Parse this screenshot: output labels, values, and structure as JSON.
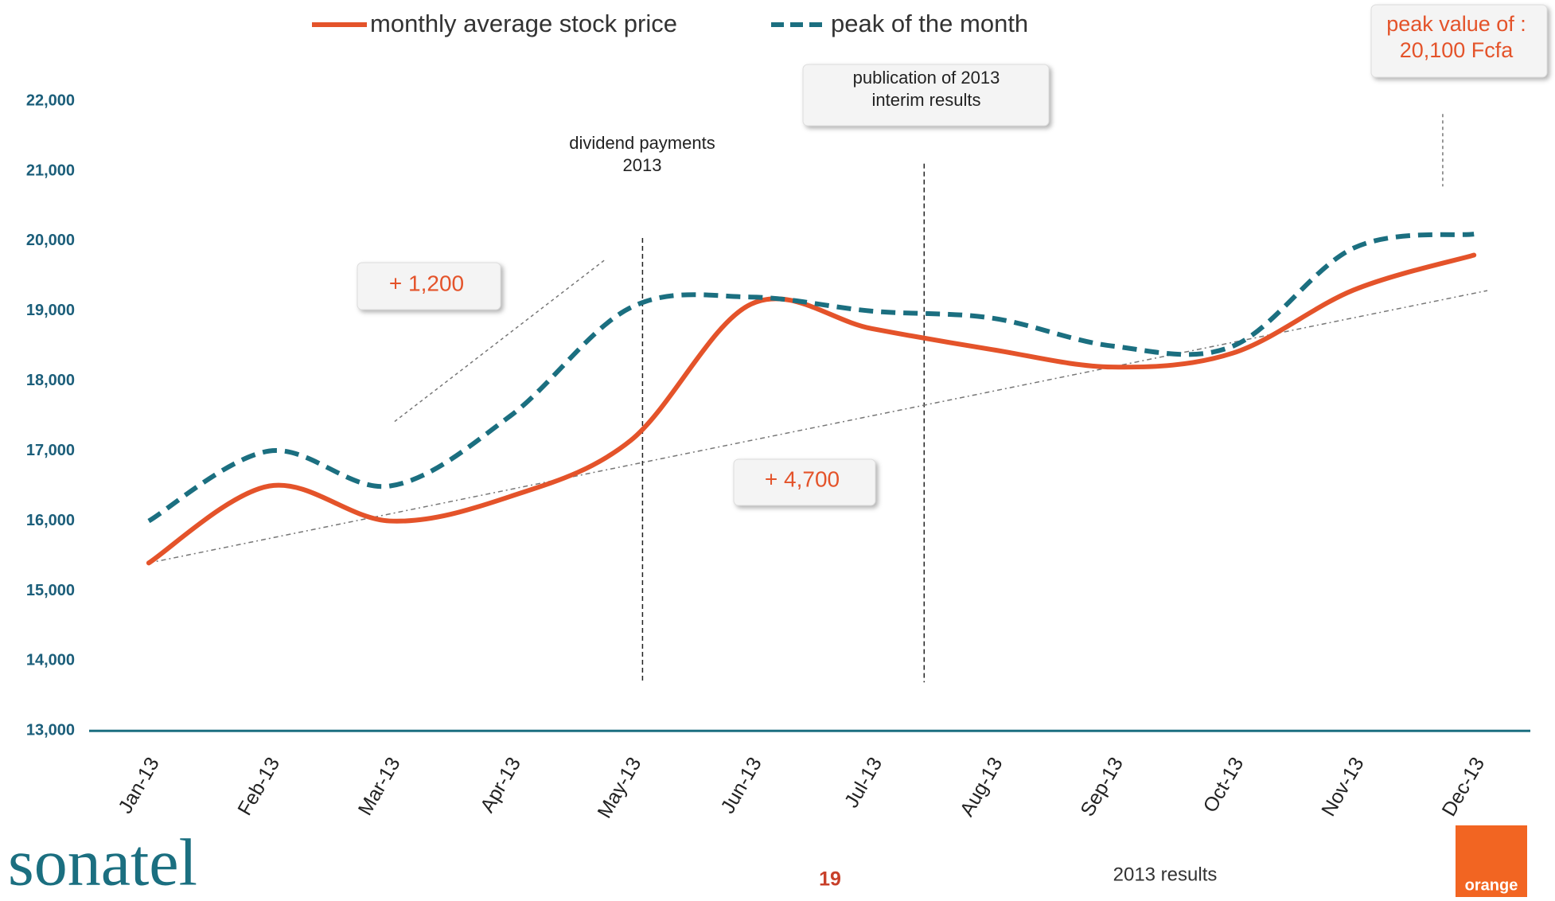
{
  "chart_data": {
    "type": "line",
    "categories": [
      "Jan-13",
      "Feb-13",
      "Mar-13",
      "Apr-13",
      "May-13",
      "Jun-13",
      "Jul-13",
      "Aug-13",
      "Sep-13",
      "Oct-13",
      "Nov-13",
      "Dec-13"
    ],
    "series": [
      {
        "name": "monthly average stock price",
        "color": "#e4532a",
        "dash": false,
        "values": [
          15400,
          16500,
          16000,
          16350,
          17150,
          19100,
          18750,
          18450,
          18200,
          18400,
          19300,
          19800
        ]
      },
      {
        "name": "peak of the month",
        "color": "#1b6f80",
        "dash": true,
        "values": [
          16000,
          17000,
          16500,
          17500,
          19050,
          19200,
          19000,
          18900,
          18500,
          18500,
          19900,
          20100
        ]
      }
    ],
    "ylim": [
      13000,
      22000
    ],
    "yticks": [
      {
        "value": 13000,
        "label": "13,000"
      },
      {
        "value": 14000,
        "label": "14,000"
      },
      {
        "value": 15000,
        "label": "15,000"
      },
      {
        "value": 16000,
        "label": "16,000"
      },
      {
        "value": 17000,
        "label": "17,000"
      },
      {
        "value": 18000,
        "label": "18,000"
      },
      {
        "value": 19000,
        "label": "19,000"
      },
      {
        "value": 20000,
        "label": "20,000"
      },
      {
        "value": 21000,
        "label": "21,000"
      },
      {
        "value": 22000,
        "label": "22,000"
      }
    ],
    "legend": "top",
    "annotations": [
      {
        "text": [
          "dividend payments",
          "2013"
        ]
      },
      {
        "text": [
          "publication of 2013",
          "interim results"
        ]
      },
      {
        "text": [
          "+ 1,200"
        ]
      },
      {
        "text": [
          "+ 4,700"
        ]
      },
      {
        "text": [
          "peak value of :",
          "20,100 Fcfa"
        ]
      }
    ]
  },
  "footer": {
    "brand": "sonatel",
    "page": "19",
    "caption": "2013 results",
    "logo": "orange"
  }
}
